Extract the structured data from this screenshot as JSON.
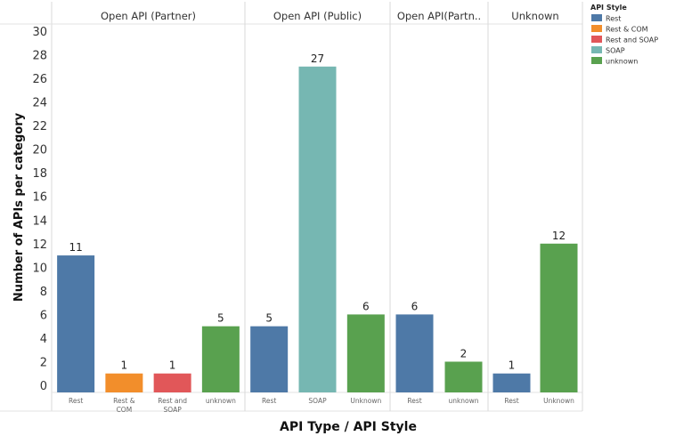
{
  "chart_data": {
    "type": "bar",
    "title": "",
    "xlabel": "API Type  /  API Style",
    "ylabel": "Number of APIs per category",
    "ylim": [
      0,
      30
    ],
    "yticks": [
      0,
      2,
      4,
      6,
      8,
      10,
      12,
      14,
      16,
      18,
      20,
      22,
      24,
      26,
      28,
      30
    ],
    "legend": {
      "title": "API Style",
      "placement": "top-right",
      "items": [
        {
          "label": "Rest",
          "color": "#4e79a7"
        },
        {
          "label": "Rest & COM",
          "color": "#f28e2b"
        },
        {
          "label": "Rest and SOAP",
          "color": "#e15759"
        },
        {
          "label": "SOAP",
          "color": "#76b7b2"
        },
        {
          "label": "unknown",
          "color": "#59a14f"
        }
      ]
    },
    "panels": [
      {
        "title": "Open API (Partner)",
        "bars": [
          {
            "category": [
              "Rest"
            ],
            "style": "Rest",
            "value": 11
          },
          {
            "category": [
              "Rest &",
              "COM"
            ],
            "style": "Rest & COM",
            "value": 1
          },
          {
            "category": [
              "Rest and",
              "SOAP"
            ],
            "style": "Rest and SOAP",
            "value": 1
          },
          {
            "category": [
              "unknown"
            ],
            "style": "unknown",
            "value": 5
          }
        ]
      },
      {
        "title": "Open API (Public)",
        "bars": [
          {
            "category": [
              "Rest"
            ],
            "style": "Rest",
            "value": 5
          },
          {
            "category": [
              "SOAP"
            ],
            "style": "SOAP",
            "value": 27
          },
          {
            "category": [
              "Unknown"
            ],
            "style": "unknown",
            "value": 6
          }
        ]
      },
      {
        "title": "Open API(Partn..",
        "bars": [
          {
            "category": [
              "Rest"
            ],
            "style": "Rest",
            "value": 6
          },
          {
            "category": [
              "unknown"
            ],
            "style": "unknown",
            "value": 2
          }
        ]
      },
      {
        "title": "Unknown",
        "bars": [
          {
            "category": [
              "Rest"
            ],
            "style": "Rest",
            "value": 1
          },
          {
            "category": [
              "Unknown"
            ],
            "style": "unknown",
            "value": 12
          }
        ]
      }
    ]
  }
}
